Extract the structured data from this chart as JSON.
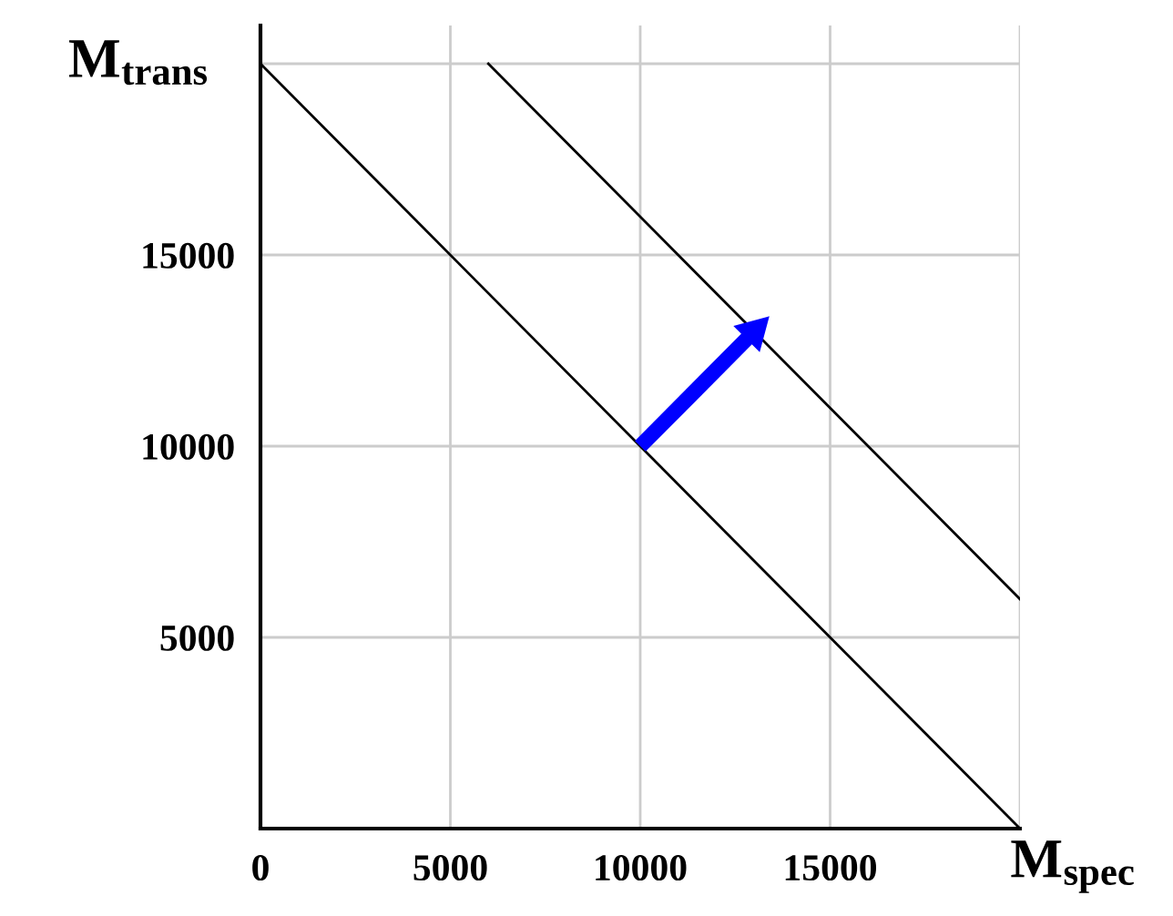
{
  "chart_data": {
    "type": "line",
    "xlabel": "M$_{spec}$",
    "ylabel": "M$_{trans}$",
    "series": [
      {
        "x": [
          0,
          20000
        ],
        "values": [
          20000,
          0
        ],
        "color": "#000000"
      },
      {
        "x": [
          6000,
          20000
        ],
        "values": [
          20000,
          6000
        ],
        "color": "#000000"
      },
      {
        "x": [
          10000,
          13000
        ],
        "values": [
          10000,
          13000
        ],
        "color": "#0000ff",
        "marker": "triangle"
      }
    ],
    "xlim": [
      0,
      20000
    ],
    "ylim": [
      0,
      21000
    ],
    "xticks": [
      0,
      5000,
      10000,
      15000,
      {
        "value": 20000,
        "label": null
      }
    ],
    "yticks": [
      {
        "value": 0,
        "label": null
      },
      5000,
      10000,
      15000,
      {
        "value": 20000,
        "label": null
      }
    ],
    "grid": true,
    "legend": false,
    "marker": "none",
    "line_style": "solid"
  }
}
